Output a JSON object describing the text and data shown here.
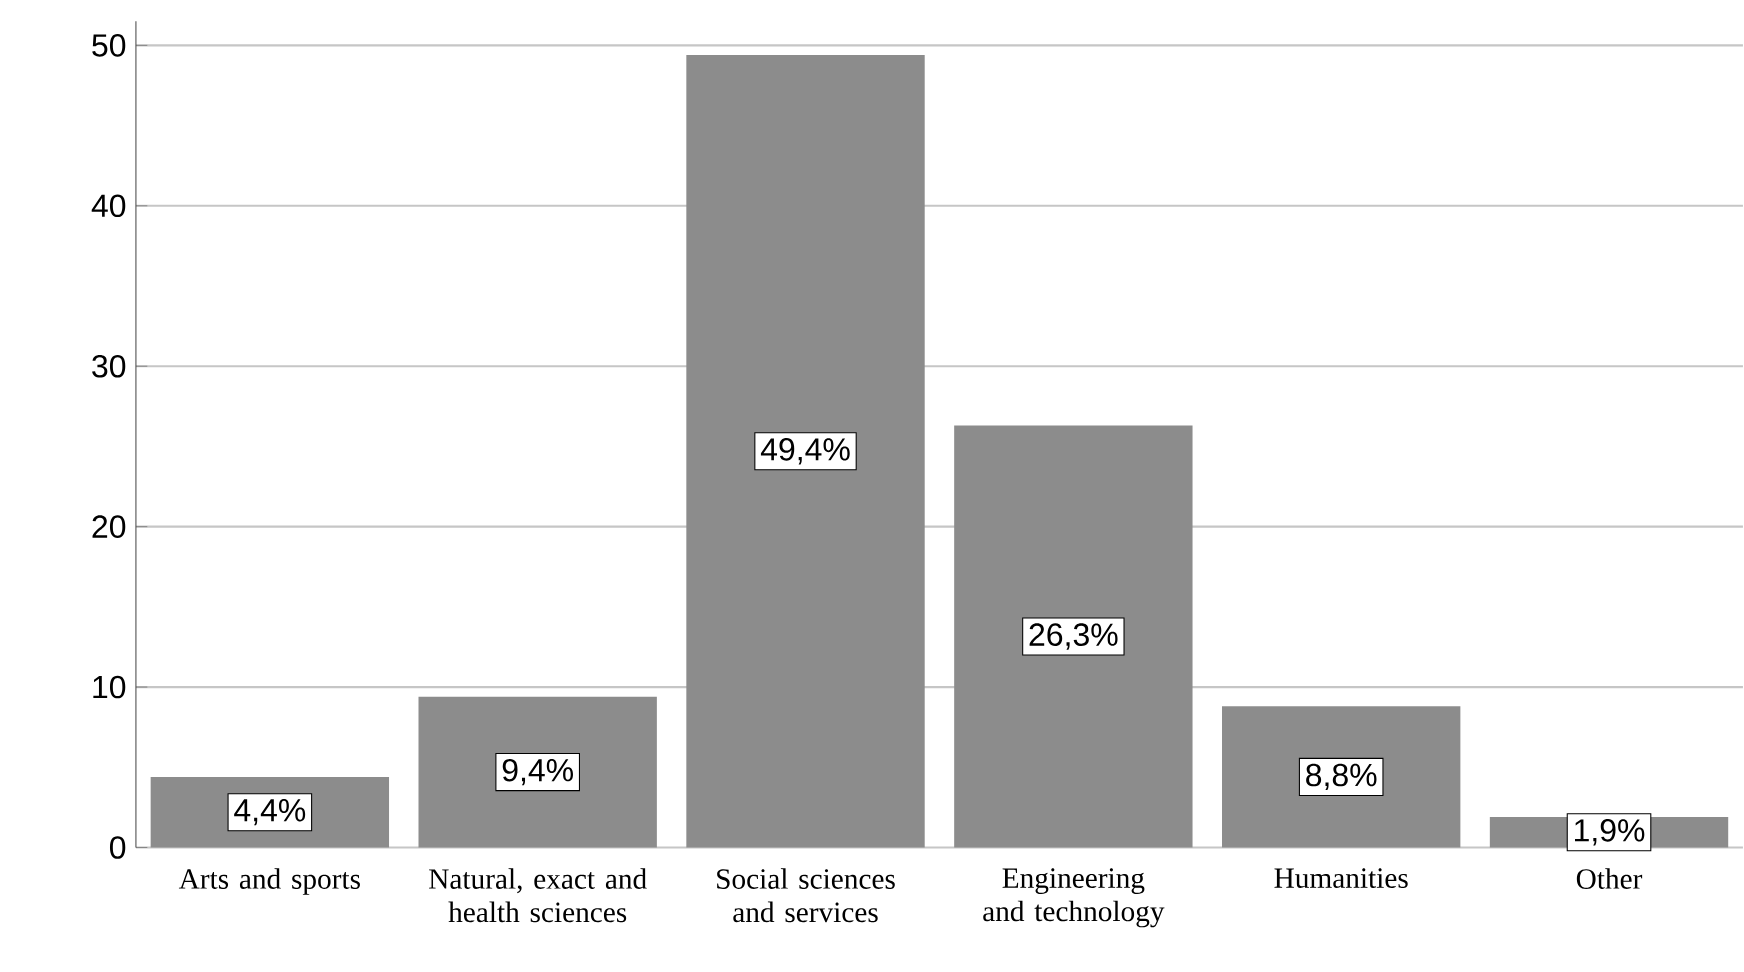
{
  "chart_data": {
    "type": "bar",
    "categories": [
      "Arts and sports",
      "Natural, exact and health sciences",
      "Social sciences and services",
      "Engineering and technology",
      "Humanities",
      "Other"
    ],
    "values": [
      4.4,
      9.4,
      49.4,
      26.3,
      8.8,
      1.9
    ],
    "value_labels": [
      "4,4%",
      "9,4%",
      "49,4%",
      "26,3%",
      "8,8%",
      "1,9%"
    ],
    "color": "#8c8c8c",
    "ylim": [
      0,
      51.5
    ],
    "yticks": [
      0,
      10,
      20,
      30,
      40,
      50
    ],
    "grid": "y"
  }
}
